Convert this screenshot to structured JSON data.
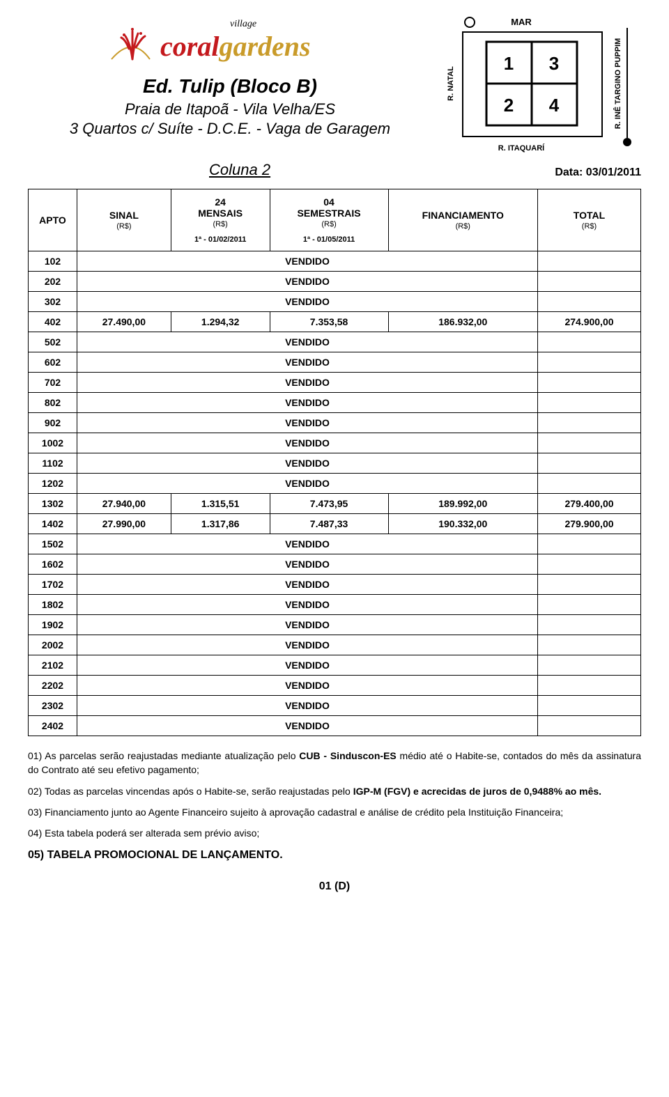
{
  "logo": {
    "top_word": "village",
    "main_word_1": "coral",
    "main_word_2": "gardens",
    "color_coral": "#c4191d",
    "color_gardens": "#c99b2a",
    "color_village": "#000000",
    "icon_color": "#c4191d"
  },
  "header": {
    "building": "Ed. Tulip (Bloco B)",
    "location": "Praia de Itapoã - Vila Velha/ES",
    "desc": "3 Quartos c/ Suíte - D.C.E. - Vaga de Garagem",
    "column_label": "Coluna 2",
    "date_label": "Data:",
    "date_value": "03/01/2011"
  },
  "site_plan": {
    "top_label": "MAR",
    "left_label": "R. NATAL",
    "bottom_label": "R. ITAQUARÍ",
    "right_label": "R. INÊ TARGINO PUPPIM",
    "cells": [
      "1",
      "3",
      "2",
      "4"
    ],
    "cell_font_size": 22,
    "label_font_size": 11,
    "border_width": 2,
    "grid_border_color": "#000000"
  },
  "table": {
    "columns": [
      {
        "label": "APTO",
        "sub": "",
        "date": ""
      },
      {
        "label": "SINAL",
        "sub": "(R$)",
        "date": ""
      },
      {
        "label": "24\nMENSAIS",
        "sub": "(R$)",
        "date": "1ª - 01/02/2011"
      },
      {
        "label": "04\nSEMESTRAIS",
        "sub": "(R$)",
        "date": "1ª - 01/05/2011"
      },
      {
        "label": "FINANCIAMENTO",
        "sub": "(R$)",
        "date": ""
      },
      {
        "label": "TOTAL",
        "sub": "(R$)",
        "date": ""
      }
    ],
    "sold_label": "VENDIDO",
    "rows": [
      {
        "apto": "102",
        "sold": true
      },
      {
        "apto": "202",
        "sold": true
      },
      {
        "apto": "302",
        "sold": true
      },
      {
        "apto": "402",
        "sold": false,
        "sinal": "27.490,00",
        "mensais": "1.294,32",
        "semestrais": "7.353,58",
        "financ": "186.932,00",
        "total": "274.900,00"
      },
      {
        "apto": "502",
        "sold": true
      },
      {
        "apto": "602",
        "sold": true
      },
      {
        "apto": "702",
        "sold": true
      },
      {
        "apto": "802",
        "sold": true
      },
      {
        "apto": "902",
        "sold": true
      },
      {
        "apto": "1002",
        "sold": true
      },
      {
        "apto": "1102",
        "sold": true
      },
      {
        "apto": "1202",
        "sold": true
      },
      {
        "apto": "1302",
        "sold": false,
        "sinal": "27.940,00",
        "mensais": "1.315,51",
        "semestrais": "7.473,95",
        "financ": "189.992,00",
        "total": "279.400,00"
      },
      {
        "apto": "1402",
        "sold": false,
        "sinal": "27.990,00",
        "mensais": "1.317,86",
        "semestrais": "7.487,33",
        "financ": "190.332,00",
        "total": "279.900,00"
      },
      {
        "apto": "1502",
        "sold": true
      },
      {
        "apto": "1602",
        "sold": true
      },
      {
        "apto": "1702",
        "sold": true
      },
      {
        "apto": "1802",
        "sold": true
      },
      {
        "apto": "1902",
        "sold": true
      },
      {
        "apto": "2002",
        "sold": true
      },
      {
        "apto": "2102",
        "sold": true
      },
      {
        "apto": "2202",
        "sold": true
      },
      {
        "apto": "2302",
        "sold": true
      },
      {
        "apto": "2402",
        "sold": true
      }
    ]
  },
  "notes": {
    "n1": "01) As parcelas serão reajustadas mediante atualização pelo CUB - Sinduscon-ES médio até o Habite-se, contados do mês da assinatura do Contrato até seu efetivo pagamento;",
    "n2": "02) Todas as parcelas vincendas após o Habite-se, serão reajustadas pelo IGP-M (FGV) e acrecidas de juros de 0,9488% ao mês.",
    "n3": "03) Financiamento junto ao Agente Financeiro sujeito à aprovação cadastral e análise de crédito pela Instituição Financeira;",
    "n4": "04) Esta tabela poderá ser alterada sem prévio aviso;",
    "n5": "05) TABELA PROMOCIONAL DE LANÇAMENTO."
  },
  "page_number": "01 (D)"
}
